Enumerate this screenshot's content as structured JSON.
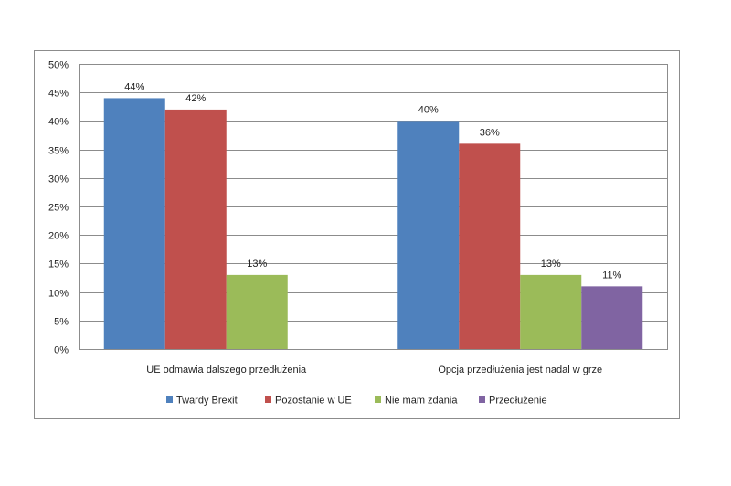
{
  "chart_data": {
    "type": "bar",
    "categories": [
      "UE odmawia dalszego przedłużenia",
      "Opcja przedłużenia jest nadal w grze"
    ],
    "series": [
      {
        "name": "Twardy Brexit",
        "color": "#4f81bd",
        "values": [
          44,
          40
        ],
        "labels": [
          "44%",
          "40%"
        ]
      },
      {
        "name": "Pozostanie w UE",
        "color": "#c0504d",
        "values": [
          42,
          36
        ],
        "labels": [
          "42%",
          "36%"
        ]
      },
      {
        "name": "Nie mam zdania",
        "color": "#9bbb59",
        "values": [
          13,
          13
        ],
        "labels": [
          "13%",
          "13%"
        ]
      },
      {
        "name": "Przedłużenie",
        "color": "#8064a2",
        "values": [
          null,
          11
        ],
        "labels": [
          "",
          "11%"
        ]
      }
    ],
    "ylim": [
      0,
      50
    ],
    "yticks": [
      0,
      5,
      10,
      15,
      20,
      25,
      30,
      35,
      40,
      45,
      50
    ],
    "ytick_labels": [
      "0%",
      "5%",
      "10%",
      "15%",
      "20%",
      "25%",
      "30%",
      "35%",
      "40%",
      "45%",
      "50%"
    ],
    "grid": true,
    "legend_position": "bottom",
    "title": "",
    "xlabel": "",
    "ylabel": ""
  }
}
